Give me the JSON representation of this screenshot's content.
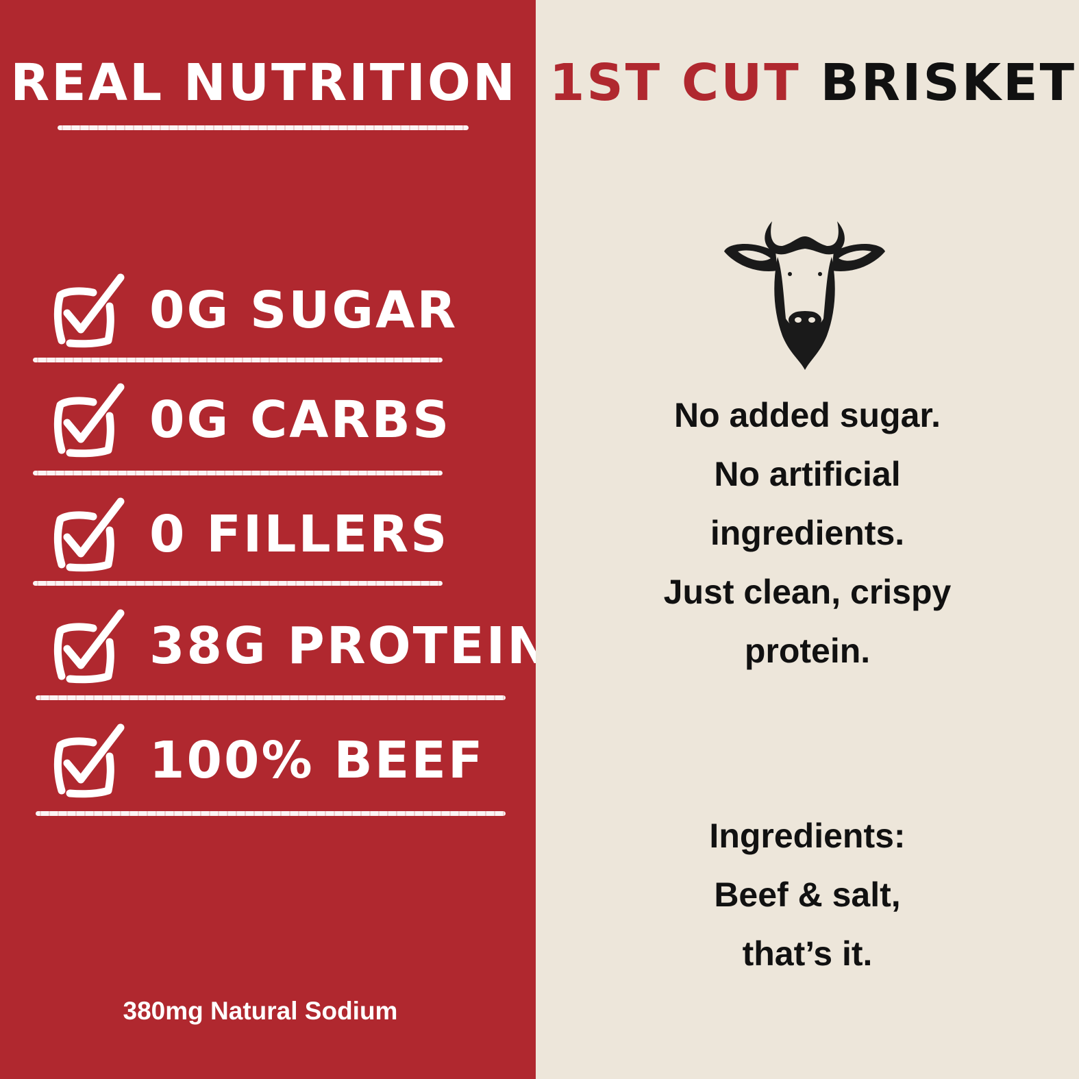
{
  "colors": {
    "red": "#b0282f",
    "cream": "#ede6da",
    "black": "#111111",
    "white": "#ffffff"
  },
  "left": {
    "title": "REAL NUTRITION",
    "items": [
      {
        "icon": "checkbox-checked-icon",
        "label": "0G SUGAR"
      },
      {
        "icon": "checkbox-checked-icon",
        "label": "0G CARBS"
      },
      {
        "icon": "checkbox-checked-icon",
        "label": "0 FILLERS"
      },
      {
        "icon": "checkbox-checked-icon",
        "label": "38G PROTEIN"
      },
      {
        "icon": "checkbox-checked-icon",
        "label": "100% BEEF"
      }
    ],
    "footnote": "380mg Natural Sodium"
  },
  "right": {
    "title_accent": "1ST CUT",
    "title_main": "BRISKET",
    "icon": "cow-head-icon",
    "description": [
      "No added sugar.",
      "No artificial",
      "ingredients.",
      "Just clean, crispy",
      "protein."
    ],
    "ingredients": [
      "Ingredients:",
      "Beef & salt,",
      "that’s it."
    ]
  }
}
